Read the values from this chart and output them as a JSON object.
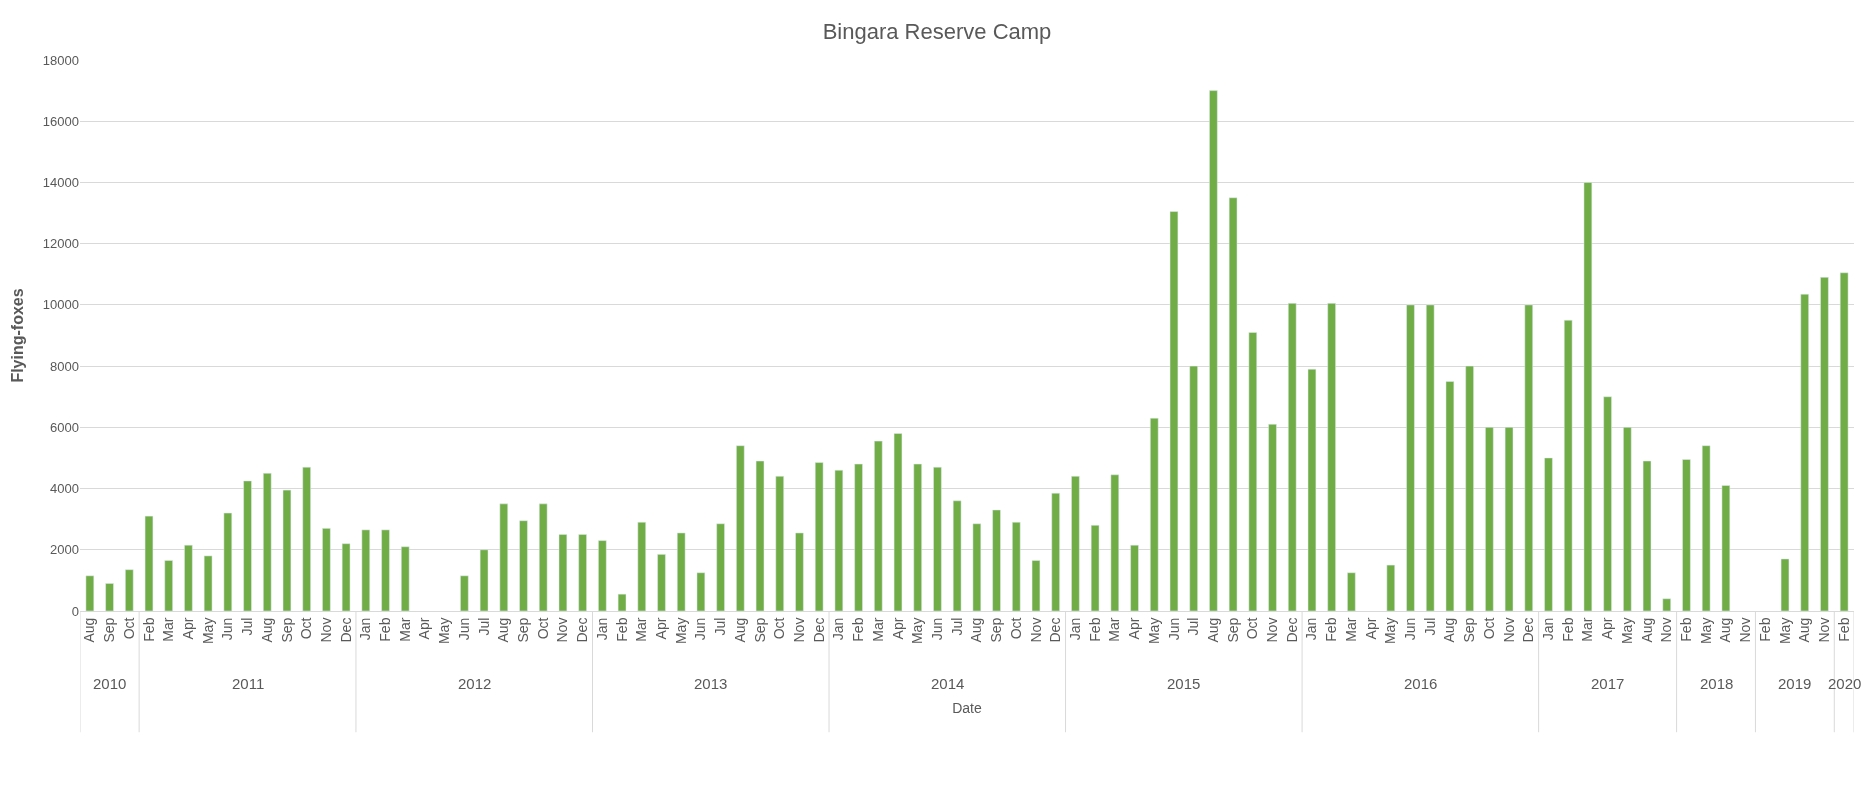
{
  "chart_data": {
    "type": "bar",
    "title": "Bingara Reserve Camp",
    "xlabel": "Date",
    "ylabel": "Flying-foxes",
    "categories": [
      "Aug",
      "Sep",
      "Oct",
      "Feb",
      "Mar",
      "Apr",
      "May",
      "Jun",
      "Jul",
      "Aug",
      "Sep",
      "Oct",
      "Nov",
      "Dec",
      "Jan",
      "Feb",
      "Mar",
      "Apr",
      "May",
      "Jun",
      "Jul",
      "Aug",
      "Sep",
      "Oct",
      "Nov",
      "Dec",
      "Jan",
      "Feb",
      "Mar",
      "Apr",
      "May",
      "Jun",
      "Jul",
      "Aug",
      "Sep",
      "Oct",
      "Nov",
      "Dec",
      "Jan",
      "Feb",
      "Mar",
      "Apr",
      "May",
      "Jun",
      "Jul",
      "Aug",
      "Sep",
      "Oct",
      "Nov",
      "Dec",
      "Jan",
      "Feb",
      "Mar",
      "Apr",
      "May",
      "Jun",
      "Jul",
      "Aug",
      "Sep",
      "Oct",
      "Nov",
      "Dec",
      "Jan",
      "Feb",
      "Mar",
      "Apr",
      "May",
      "Jun",
      "Jul",
      "Aug",
      "Sep",
      "Oct",
      "Nov",
      "Dec",
      "Jan",
      "Feb",
      "Mar",
      "Apr",
      "May",
      "Aug",
      "Nov",
      "Feb",
      "May",
      "Aug",
      "Nov",
      "Feb",
      "May",
      "Aug",
      "Nov",
      "Feb"
    ],
    "values": [
      1150,
      900,
      1350,
      3100,
      1650,
      2150,
      1800,
      3200,
      4250,
      4500,
      3950,
      4700,
      2700,
      2200,
      2650,
      2650,
      2100,
      null,
      null,
      1150,
      2000,
      3500,
      2950,
      3500,
      2500,
      2500,
      2300,
      550,
      2900,
      1850,
      2550,
      1250,
      2850,
      5400,
      4900,
      4400,
      2550,
      4850,
      4600,
      4800,
      5550,
      5800,
      4800,
      4700,
      3600,
      2850,
      3300,
      2900,
      1650,
      3850,
      4400,
      2800,
      4450,
      2150,
      6300,
      13050,
      8000,
      17000,
      13500,
      9100,
      6100,
      10050,
      7900,
      10050,
      1250,
      null,
      1500,
      10000,
      10000,
      7500,
      8000,
      6000,
      6000,
      10000,
      5000,
      9500,
      14000,
      7000,
      6000,
      4900,
      400,
      4950,
      5400,
      4100,
      null,
      null,
      1700,
      10350,
      10900,
      11050
    ],
    "color": "#70ad47",
    "annotations": [
      "2010",
      "2011",
      "2012",
      "2013",
      "2014",
      "2015",
      "2016",
      "2017",
      "2018",
      "2019",
      "2020"
    ],
    "ylim": [
      0,
      18000
    ],
    "yticks": [
      0,
      2000,
      4000,
      6000,
      8000,
      10000,
      12000,
      14000,
      16000,
      18000
    ],
    "grid": "y"
  }
}
